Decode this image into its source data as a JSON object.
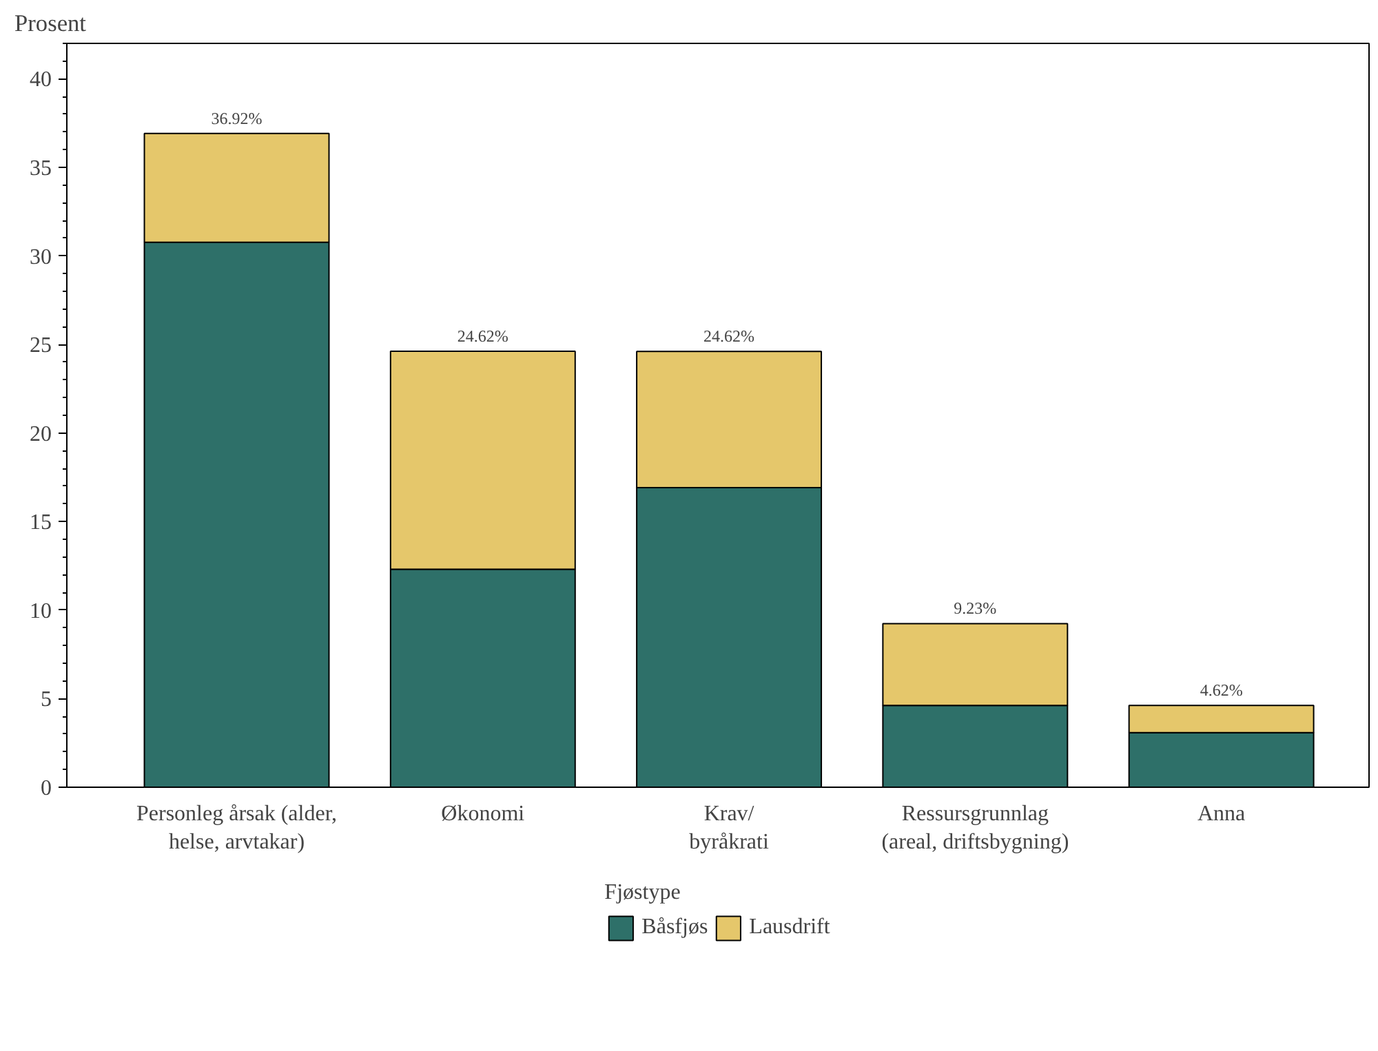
{
  "chart_data": {
    "type": "bar",
    "stacked": true,
    "ylabel": "Prosent",
    "legend_title": "Fjøstype",
    "legend": "bottom",
    "categories": [
      "Personleg årsak (alder,\nhelse, arvtakar)",
      "Økonomi",
      "Krav/\nbyråkrati",
      "Ressursgrunnlag\n(areal, driftsbygning)",
      "Anna"
    ],
    "series": [
      {
        "name": "Båsfjøs",
        "color": "#2e7069",
        "values": [
          30.77,
          12.31,
          16.92,
          4.62,
          3.08
        ]
      },
      {
        "name": "Lausdrift",
        "color": "#e5c76b",
        "values": [
          6.15,
          12.31,
          7.69,
          4.62,
          1.54
        ]
      }
    ],
    "totals": [
      "36.92%",
      "24.62%",
      "24.62%",
      "9.23%",
      "4.62%"
    ],
    "ylim": [
      0,
      42
    ],
    "yticks": [
      0,
      5,
      10,
      15,
      20,
      25,
      30,
      35,
      40
    ],
    "grid": false
  }
}
